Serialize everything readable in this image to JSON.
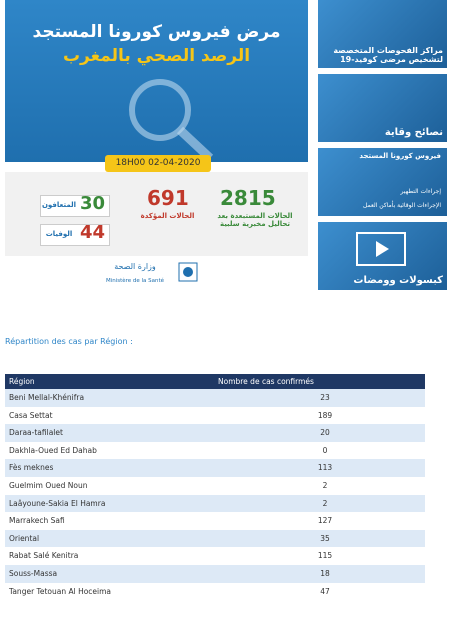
{
  "banner": {
    "title": "مرض فيروس كورونا المستجد",
    "subtitle": "الرصد الصحي بالمغرب",
    "datetime": "18H00  02-04-2020",
    "excluded": {
      "value": 2815,
      "label": "الحالات المستبعدة بعد تحاليل مخبرية سلبية"
    },
    "confirmed": {
      "value": 691,
      "label": "الحالات المؤكدة"
    },
    "recovered": {
      "value": 30,
      "label": "المتعافون"
    },
    "deaths": {
      "value": 44,
      "label": "الوفيات"
    },
    "ministry_ar": "وزارة الصحة",
    "ministry_fr": "Ministère de la Santé"
  },
  "tiles": [
    {
      "label": "مراكز الفحوصات المتخصصة لتشخيص مرضى كوفيد-19"
    },
    {
      "label": "نصائح وقاية"
    },
    {
      "label": "فيروس كورونا المستجد",
      "items": [
        "إجراءات التطهير",
        "الإجراءات الوقائية بأماكن العمل"
      ]
    },
    {
      "label": "كبسولات وومضات"
    }
  ],
  "section_title": "Répartition des cas par Région :",
  "table": {
    "header": [
      "Région",
      "Nombre de cas confirmés"
    ],
    "rows": [
      [
        "Beni Mellal-Khénifra",
        23
      ],
      [
        "Casa Settat",
        189
      ],
      [
        "Daraa-tafilalet",
        20
      ],
      [
        "Dakhla-Oued Ed Dahab",
        0
      ],
      [
        "Fès meknes",
        113
      ],
      [
        "Guelmim Oued Noun",
        2
      ],
      [
        "Laâyoune-Sakia El Hamra",
        2
      ],
      [
        "Marrakech Safi",
        127
      ],
      [
        "Oriental",
        35
      ],
      [
        "Rabat Salé Kenitra",
        115
      ],
      [
        "Souss-Massa",
        18
      ],
      [
        "Tanger Tetouan Al Hoceima",
        47
      ]
    ]
  }
}
